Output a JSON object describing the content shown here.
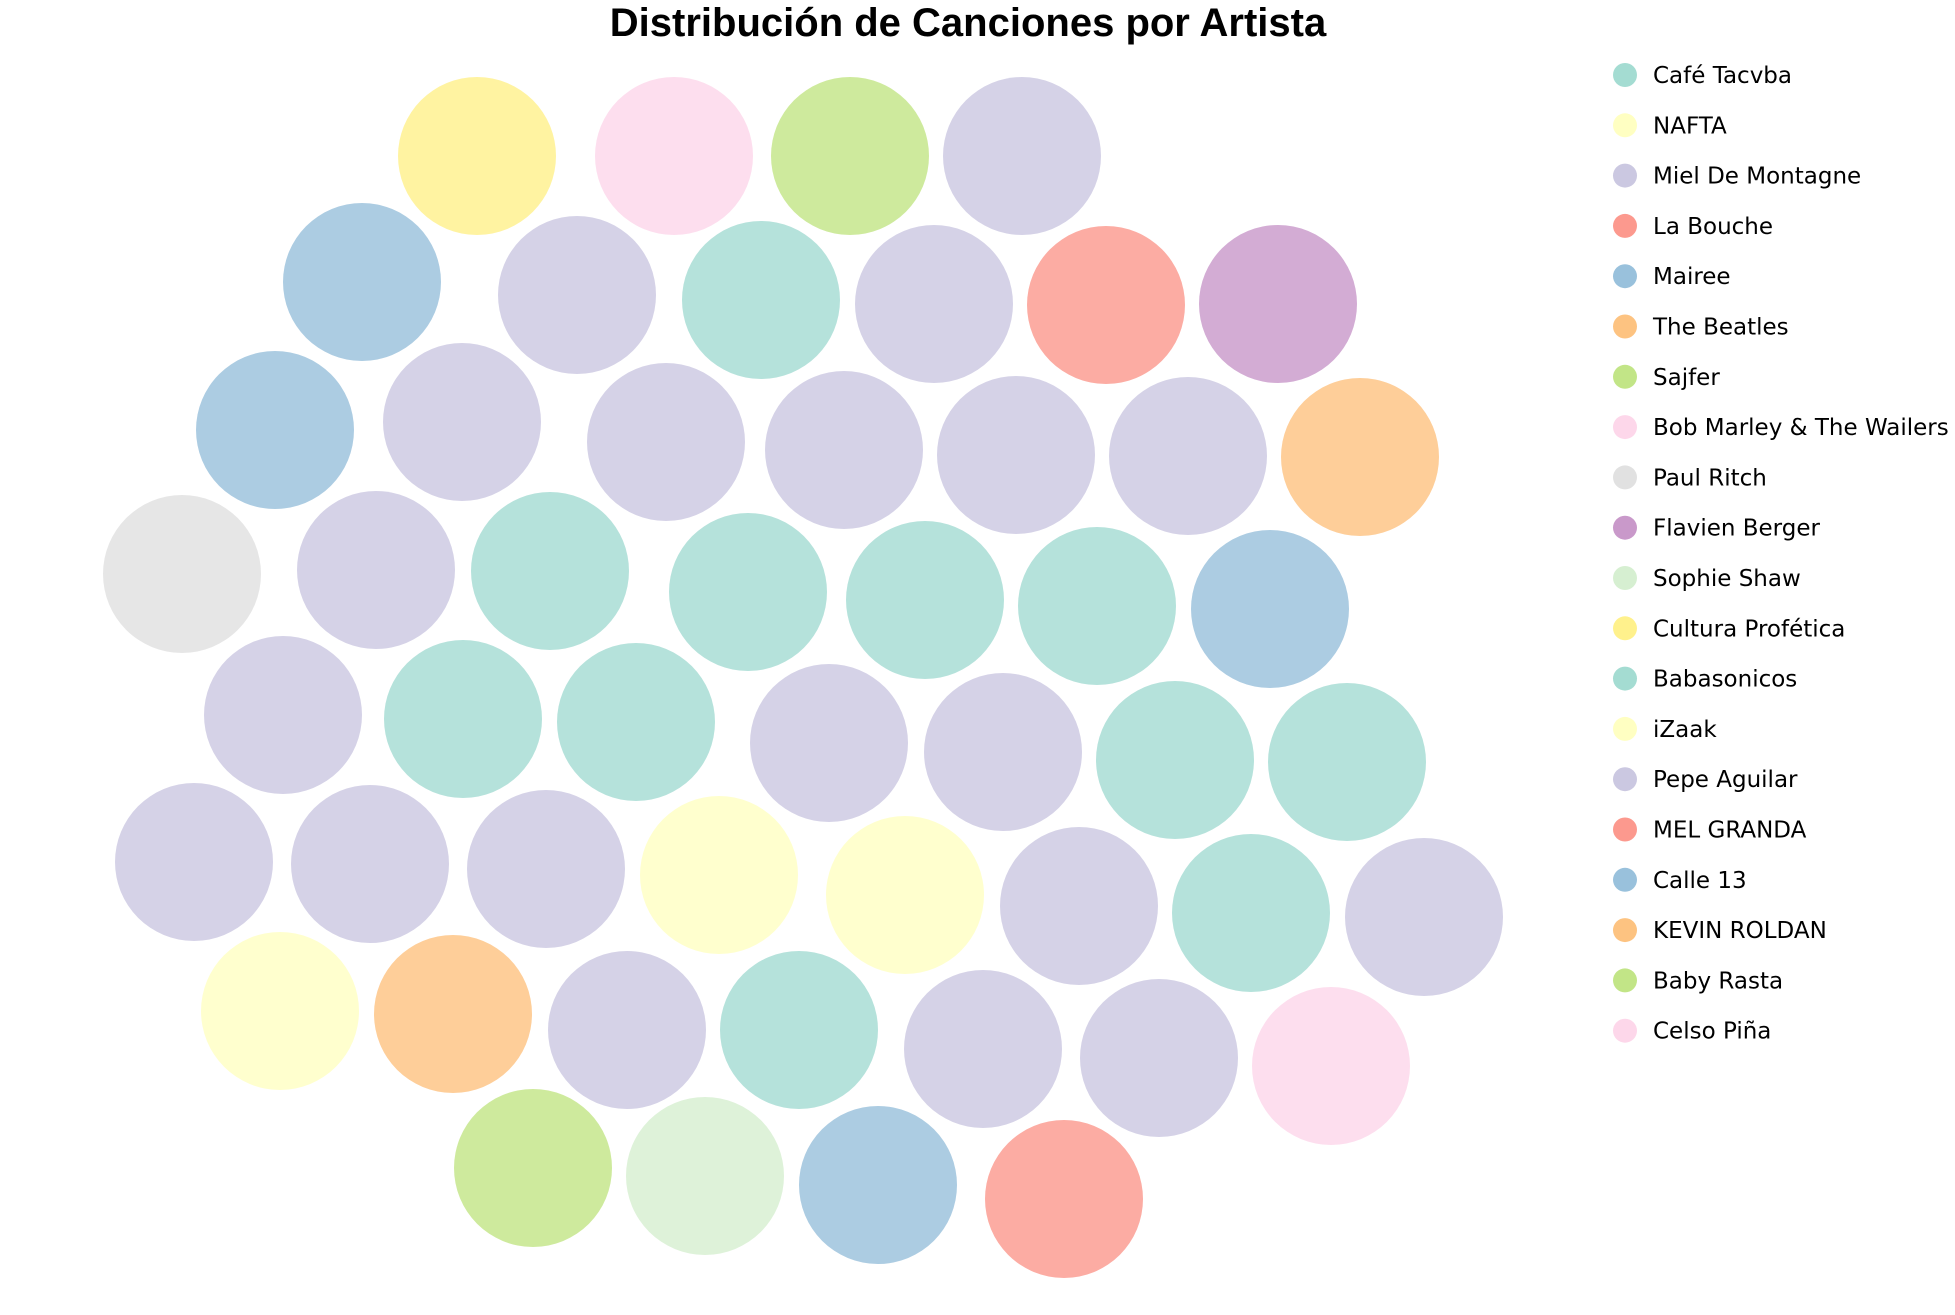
{
  "chart_data": {
    "type": "bubble",
    "title": "Distribución de Canciones por Artista",
    "legend_position": "right",
    "artists": [
      {
        "name": "Café Tacvba",
        "color": "#8dd3c7"
      },
      {
        "name": "NAFTA",
        "color": "#ffffb3"
      },
      {
        "name": "Miel De Montagne",
        "color": "#bebada"
      },
      {
        "name": "La Bouche",
        "color": "#fb8072"
      },
      {
        "name": "Mairee",
        "color": "#80b1d3"
      },
      {
        "name": "The Beatles",
        "color": "#fdb462"
      },
      {
        "name": "Sajfer",
        "color": "#b3de69"
      },
      {
        "name": "Bob Marley & The Wailers",
        "color": "#fccde5"
      },
      {
        "name": "Paul Ritch",
        "color": "#d9d9d9"
      },
      {
        "name": "Flavien Berger",
        "color": "#bc80bd"
      },
      {
        "name": "Sophie Shaw",
        "color": "#ccebc5"
      },
      {
        "name": "Cultura Profética",
        "color": "#ffed6f"
      },
      {
        "name": "Babasonicos",
        "color": "#8dd3c7"
      },
      {
        "name": "iZaak",
        "color": "#ffffb3"
      },
      {
        "name": "Pepe Aguilar",
        "color": "#bebada"
      },
      {
        "name": "MEL GRANDA",
        "color": "#fb8072"
      },
      {
        "name": "Calle 13",
        "color": "#80b1d3"
      },
      {
        "name": "KEVIN ROLDAN",
        "color": "#fdb462"
      },
      {
        "name": "Baby Rasta",
        "color": "#b3de69"
      },
      {
        "name": "Celso Piña",
        "color": "#fccde5"
      }
    ],
    "bubbles": [
      {
        "artist": "Cultura Profética",
        "value": 1
      },
      {
        "artist": "Bob Marley & The Wailers",
        "value": 1
      },
      {
        "artist": "Sajfer",
        "value": 1
      },
      {
        "artist": "Pepe Aguilar",
        "value": 1
      },
      {
        "artist": "Mairee",
        "value": 1
      },
      {
        "artist": "Pepe Aguilar",
        "value": 1
      },
      {
        "artist": "Babasonicos",
        "value": 1
      },
      {
        "artist": "Pepe Aguilar",
        "value": 1
      },
      {
        "artist": "La Bouche",
        "value": 1
      },
      {
        "artist": "Flavien Berger",
        "value": 1
      },
      {
        "artist": "Calle 13",
        "value": 1
      },
      {
        "artist": "Pepe Aguilar",
        "value": 1
      },
      {
        "artist": "Pepe Aguilar",
        "value": 1
      },
      {
        "artist": "Pepe Aguilar",
        "value": 1
      },
      {
        "artist": "Pepe Aguilar",
        "value": 1
      },
      {
        "artist": "Pepe Aguilar",
        "value": 1
      },
      {
        "artist": "KEVIN ROLDAN",
        "value": 1
      },
      {
        "artist": "Paul Ritch",
        "value": 1
      },
      {
        "artist": "Pepe Aguilar",
        "value": 1
      },
      {
        "artist": "Babasonicos",
        "value": 1
      },
      {
        "artist": "Babasonicos",
        "value": 1
      },
      {
        "artist": "Babasonicos",
        "value": 1
      },
      {
        "artist": "Babasonicos",
        "value": 1
      },
      {
        "artist": "Calle 13",
        "value": 1
      },
      {
        "artist": "Pepe Aguilar",
        "value": 1
      },
      {
        "artist": "Babasonicos",
        "value": 1
      },
      {
        "artist": "Babasonicos",
        "value": 1
      },
      {
        "artist": "Pepe Aguilar",
        "value": 1
      },
      {
        "artist": "Pepe Aguilar",
        "value": 1
      },
      {
        "artist": "Babasonicos",
        "value": 1
      },
      {
        "artist": "Babasonicos",
        "value": 1
      },
      {
        "artist": "Pepe Aguilar",
        "value": 1
      },
      {
        "artist": "Pepe Aguilar",
        "value": 1
      },
      {
        "artist": "Pepe Aguilar",
        "value": 1
      },
      {
        "artist": "iZaak",
        "value": 1
      },
      {
        "artist": "iZaak",
        "value": 1
      },
      {
        "artist": "Pepe Aguilar",
        "value": 1
      },
      {
        "artist": "Babasonicos",
        "value": 1
      },
      {
        "artist": "Pepe Aguilar",
        "value": 1
      },
      {
        "artist": "iZaak",
        "value": 1
      },
      {
        "artist": "KEVIN ROLDAN",
        "value": 1
      },
      {
        "artist": "Pepe Aguilar",
        "value": 1
      },
      {
        "artist": "Babasonicos",
        "value": 1
      },
      {
        "artist": "Pepe Aguilar",
        "value": 1
      },
      {
        "artist": "Pepe Aguilar",
        "value": 1
      },
      {
        "artist": "Celso Piña",
        "value": 1
      },
      {
        "artist": "Baby Rasta",
        "value": 1
      },
      {
        "artist": "Sophie Shaw",
        "value": 1
      },
      {
        "artist": "Calle 13",
        "value": 1
      },
      {
        "artist": "MEL GRANDA",
        "value": 1
      }
    ]
  }
}
